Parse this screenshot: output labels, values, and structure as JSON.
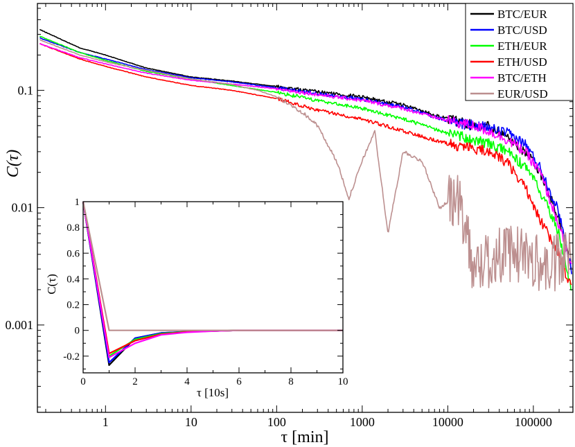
{
  "chart_data": [
    {
      "type": "line",
      "scale": "log-log",
      "title": "",
      "xlabel": "τ [min]",
      "ylabel": "C(τ)",
      "xlim": [
        0.16,
        290000
      ],
      "ylim": [
        0.00018,
        0.55
      ],
      "xticks": [
        1,
        10,
        100,
        1000,
        10000,
        100000
      ],
      "xtick_labels": [
        "1",
        "10",
        "100",
        "1000",
        "10000",
        "100000"
      ],
      "yticks": [
        0.001,
        0.01,
        0.1
      ],
      "ytick_labels": [
        "0.001",
        "0.01",
        "0.1"
      ],
      "legend_position": "top-right",
      "series": [
        {
          "name": "BTC/EUR",
          "color": "#000000",
          "x": [
            0.17,
            0.5,
            1,
            3,
            10,
            30,
            100,
            300,
            1000,
            3000,
            10000,
            20000,
            30000,
            50000,
            80000,
            120000,
            200000,
            280000
          ],
          "y": [
            0.33,
            0.23,
            0.2,
            0.155,
            0.13,
            0.12,
            0.108,
            0.097,
            0.088,
            0.075,
            0.057,
            0.05,
            0.05,
            0.04,
            0.03,
            0.02,
            0.008,
            0.003
          ]
        },
        {
          "name": "BTC/USD",
          "color": "#0000ff",
          "x": [
            0.17,
            0.5,
            1,
            3,
            10,
            30,
            100,
            300,
            1000,
            3000,
            10000,
            20000,
            30000,
            50000,
            80000,
            120000,
            200000,
            280000
          ],
          "y": [
            0.28,
            0.21,
            0.185,
            0.15,
            0.128,
            0.118,
            0.105,
            0.094,
            0.084,
            0.072,
            0.055,
            0.05,
            0.048,
            0.043,
            0.035,
            0.022,
            0.009,
            0.003
          ]
        },
        {
          "name": "ETH/EUR",
          "color": "#00ff00",
          "x": [
            0.17,
            0.5,
            1,
            3,
            10,
            30,
            100,
            300,
            1000,
            3000,
            10000,
            20000,
            30000,
            50000,
            80000,
            120000,
            200000,
            280000
          ],
          "y": [
            0.29,
            0.21,
            0.18,
            0.145,
            0.125,
            0.11,
            0.096,
            0.082,
            0.07,
            0.057,
            0.043,
            0.038,
            0.035,
            0.03,
            0.022,
            0.014,
            0.006,
            0.002
          ]
        },
        {
          "name": "ETH/USD",
          "color": "#ff0000",
          "x": [
            0.17,
            0.5,
            1,
            3,
            10,
            30,
            100,
            300,
            1000,
            3000,
            10000,
            20000,
            30000,
            50000,
            80000,
            120000,
            200000,
            280000
          ],
          "y": [
            0.25,
            0.185,
            0.16,
            0.13,
            0.11,
            0.1,
            0.085,
            0.068,
            0.057,
            0.045,
            0.035,
            0.032,
            0.03,
            0.024,
            0.015,
            0.008,
            0.004,
            0.002
          ]
        },
        {
          "name": "BTC/ETH",
          "color": "#ff00ff",
          "x": [
            0.17,
            0.5,
            1,
            3,
            10,
            30,
            100,
            300,
            1000,
            3000,
            10000,
            20000,
            30000,
            50000,
            80000,
            120000,
            200000,
            280000
          ],
          "y": [
            0.25,
            0.19,
            0.168,
            0.14,
            0.122,
            0.113,
            0.103,
            0.092,
            0.082,
            0.07,
            0.055,
            0.05,
            0.045,
            0.038,
            0.03,
            0.02,
            0.007,
            0.003
          ]
        },
        {
          "name": "EUR/USD",
          "color": "#bc8f8f",
          "x": [
            0.17,
            0.5,
            1,
            3,
            10,
            30,
            60,
            100,
            200,
            300,
            500,
            700,
            1000,
            1400,
            2000,
            3000,
            5000,
            8000,
            12000,
            16000,
            20000,
            40000,
            80000,
            150000,
            280000
          ],
          "y": [
            0.27,
            0.2,
            0.175,
            0.148,
            0.125,
            0.112,
            0.1,
            0.088,
            0.065,
            0.05,
            0.025,
            0.012,
            0.025,
            0.045,
            0.006,
            0.03,
            0.025,
            0.01,
            0.012,
            0.008,
            0.003,
            0.004,
            0.004,
            0.003,
            0.004
          ]
        }
      ]
    },
    {
      "type": "line",
      "title": "",
      "xlabel": "τ [10s]",
      "ylabel": "C(τ)",
      "xlim": [
        0,
        10
      ],
      "ylim": [
        -0.33,
        1
      ],
      "xticks": [
        0,
        2,
        4,
        6,
        8,
        10
      ],
      "xtick_labels": [
        "0",
        "2",
        "4",
        "6",
        "8",
        "10"
      ],
      "yticks": [
        -0.2,
        0,
        0.2,
        0.4,
        0.6,
        0.8,
        1
      ],
      "ytick_labels": [
        "-0.2",
        "0",
        "0.2",
        "0.4",
        "0.6",
        "0.8",
        "1"
      ],
      "series": [
        {
          "name": "BTC/EUR",
          "color": "#000000",
          "x": [
            0,
            1,
            2,
            3,
            4,
            5,
            6,
            8,
            10
          ],
          "y": [
            1,
            -0.27,
            -0.06,
            -0.02,
            -0.01,
            -0.005,
            0,
            0,
            0
          ]
        },
        {
          "name": "BTC/USD",
          "color": "#0000ff",
          "x": [
            0,
            1,
            2,
            3,
            4,
            5,
            6,
            8,
            10
          ],
          "y": [
            1,
            -0.25,
            -0.06,
            -0.02,
            -0.01,
            -0.005,
            0,
            0,
            0
          ]
        },
        {
          "name": "ETH/EUR",
          "color": "#00ff00",
          "x": [
            0,
            1,
            2,
            3,
            4,
            5,
            6,
            8,
            10
          ],
          "y": [
            1,
            -0.2,
            -0.07,
            -0.025,
            -0.01,
            -0.005,
            0,
            0,
            0
          ]
        },
        {
          "name": "ETH/USD",
          "color": "#ff0000",
          "x": [
            0,
            1,
            2,
            3,
            4,
            5,
            6,
            8,
            10
          ],
          "y": [
            1,
            -0.18,
            -0.08,
            -0.03,
            -0.012,
            -0.005,
            0,
            0,
            0
          ]
        },
        {
          "name": "BTC/ETH",
          "color": "#ff00ff",
          "x": [
            0,
            1,
            2,
            3,
            4,
            5,
            6,
            8,
            10
          ],
          "y": [
            1,
            -0.21,
            -0.1,
            -0.035,
            -0.015,
            -0.006,
            0,
            0,
            0
          ]
        },
        {
          "name": "EUR/USD",
          "color": "#bc8f8f",
          "x": [
            0,
            1,
            2,
            3,
            4,
            6,
            8,
            10
          ],
          "y": [
            1,
            0,
            0,
            0,
            0,
            0,
            0,
            0
          ]
        }
      ]
    }
  ]
}
